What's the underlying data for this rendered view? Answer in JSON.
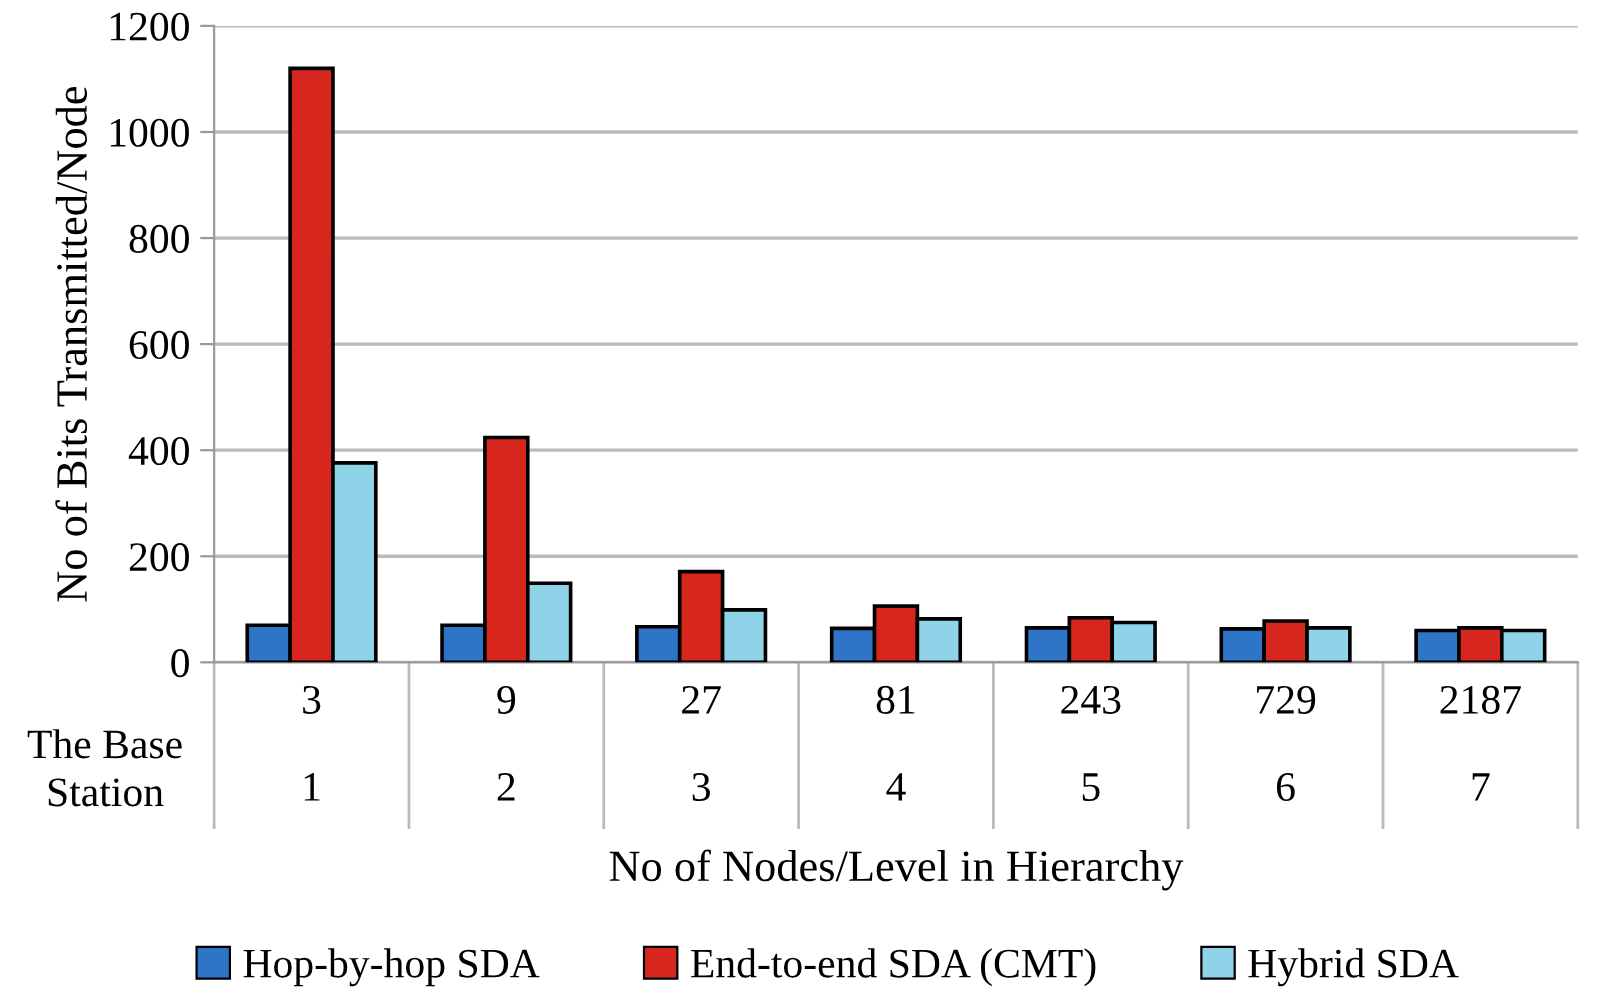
{
  "chart_data": {
    "type": "bar",
    "xlabel": "No of Nodes/Level in Hierarchy",
    "ylabel": "No of Bits Transmitted/Node",
    "categories": [
      "3\n\n1",
      "9\n\n2",
      "27\n\n3",
      "81\n\n4",
      "243\n\n5",
      "729\n\n6",
      "2187\n\n7"
    ],
    "series": [
      {
        "name": "Hop-by-hop SDA",
        "color": "#2e75c8",
        "values": [
          70,
          70,
          67,
          64,
          65,
          63,
          60
        ]
      },
      {
        "name": "End-to-end SDA (CMT)",
        "color": "#d7261e",
        "values": [
          1120,
          424,
          171,
          106,
          84,
          78,
          65
        ]
      },
      {
        "name": "Hybrid SDA",
        "color": "#8fd3e8",
        "values": [
          376,
          149,
          99,
          82,
          75,
          65,
          60
        ]
      }
    ],
    "annotations": [
      "The Base\nStation"
    ],
    "ylim": [
      0,
      1200
    ],
    "yticks": [
      0,
      200,
      400,
      600,
      800,
      1000,
      1200
    ],
    "grid": "y",
    "legend": "bottom"
  }
}
